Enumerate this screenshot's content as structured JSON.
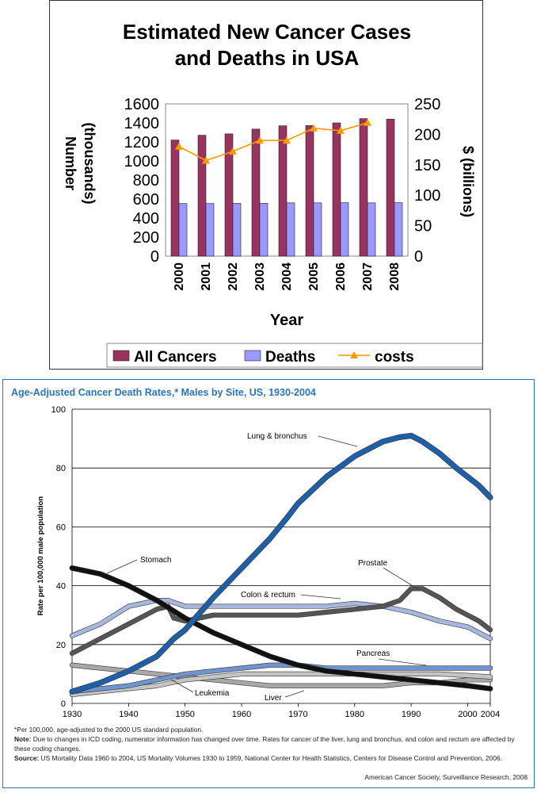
{
  "chart_data": [
    {
      "type": "bar",
      "title_lines": [
        "Estimated New Cancer Cases",
        "and Deaths in USA"
      ],
      "categories": [
        "2000",
        "2001",
        "2002",
        "2003",
        "2004",
        "2005",
        "2006",
        "2007",
        "2008"
      ],
      "series": [
        {
          "name": "All Cancers",
          "type": "bar",
          "axis": "left",
          "color": "#99335f",
          "values": [
            1220,
            1270,
            1285,
            1335,
            1370,
            1372,
            1400,
            1445,
            1440
          ]
        },
        {
          "name": "Deaths",
          "type": "bar",
          "axis": "left",
          "color": "#9999ff",
          "values": [
            553,
            553,
            555,
            556,
            560,
            560,
            562,
            560,
            562
          ]
        },
        {
          "name": "costs",
          "type": "line",
          "axis": "right",
          "color": "#ff9900",
          "values": [
            180,
            157,
            172,
            190,
            190,
            210,
            206,
            219,
            null
          ]
        }
      ],
      "ylabel_lines": [
        "Number",
        "(thousands)"
      ],
      "ylim": [
        0,
        1600
      ],
      "yticks": [
        "0",
        "200",
        "400",
        "600",
        "800",
        "1000",
        "1200",
        "1400",
        "1600"
      ],
      "y2label": "$ (billions)",
      "y2lim": [
        0,
        250
      ],
      "y2ticks": [
        "0",
        "50",
        "100",
        "150",
        "200",
        "250"
      ],
      "xlabel": "Year",
      "legend_position": "bottom"
    },
    {
      "type": "line",
      "title": "Age-Adjusted Cancer Death Rates,* Males by Site, US, 1930-2004",
      "ylabel": "Rate per 100,000 male population",
      "xlim": [
        1930,
        2004
      ],
      "ylim": [
        0,
        100
      ],
      "xticks": [
        "1930",
        "1940",
        "1950",
        "1960",
        "1970",
        "1980",
        "1990",
        "2000",
        "2004"
      ],
      "yticks": [
        "0",
        "20",
        "40",
        "60",
        "80",
        "100"
      ],
      "grid": true,
      "series": [
        {
          "name": "Lung & bronchus",
          "color": "#1f5fa8",
          "x": [
            1930,
            1935,
            1940,
            1945,
            1948,
            1950,
            1955,
            1960,
            1965,
            1968,
            1970,
            1975,
            1980,
            1985,
            1988,
            1990,
            1992,
            1995,
            1998,
            2000,
            2002,
            2004
          ],
          "y": [
            4,
            7,
            11,
            16,
            22,
            25,
            36,
            46,
            56,
            63,
            68,
            77,
            84,
            89,
            90.5,
            91,
            89,
            85,
            80,
            77,
            74,
            70
          ]
        },
        {
          "name": "Stomach",
          "color": "#111111",
          "x": [
            1930,
            1935,
            1940,
            1945,
            1950,
            1955,
            1960,
            1965,
            1970,
            1975,
            1980,
            1985,
            1990,
            1995,
            2000,
            2004
          ],
          "y": [
            46,
            44,
            40,
            35,
            29,
            24,
            20,
            16,
            13,
            11,
            10,
            9,
            8,
            7,
            6,
            5
          ]
        },
        {
          "name": "Prostate",
          "color": "#555555",
          "x": [
            1930,
            1935,
            1940,
            1944,
            1945,
            1947,
            1948,
            1950,
            1955,
            1960,
            1965,
            1970,
            1975,
            1980,
            1985,
            1988,
            1990,
            1992,
            1995,
            1998,
            2000,
            2002,
            2004
          ],
          "y": [
            17,
            22,
            27,
            31,
            32,
            33,
            29,
            28,
            30,
            30,
            30,
            30,
            31,
            32,
            33,
            35,
            39,
            39,
            36,
            32,
            30,
            28,
            25
          ]
        },
        {
          "name": "Colon & rectum",
          "color": "#a7b7de",
          "x": [
            1930,
            1935,
            1940,
            1945,
            1947,
            1950,
            1955,
            1960,
            1965,
            1970,
            1975,
            1980,
            1985,
            1990,
            1995,
            2000,
            2004
          ],
          "y": [
            23,
            27,
            33,
            35,
            35,
            33,
            33,
            33,
            33,
            33,
            33,
            34,
            33,
            31,
            28,
            26,
            22
          ]
        },
        {
          "name": "Pancreas",
          "color": "#6f94cf",
          "x": [
            1930,
            1935,
            1940,
            1945,
            1950,
            1955,
            1960,
            1965,
            1970,
            1975,
            1980,
            1985,
            1990,
            1995,
            2000,
            2004
          ],
          "y": [
            4,
            5,
            6,
            8,
            10,
            11,
            12,
            13,
            13,
            12,
            12,
            12,
            12,
            12,
            12,
            12
          ]
        },
        {
          "name": "Leukemia",
          "color": "#c4c4c4",
          "x": [
            1930,
            1935,
            1940,
            1945,
            1950,
            1955,
            1960,
            1965,
            1970,
            1975,
            1980,
            1985,
            1990,
            1995,
            2000,
            2004
          ],
          "y": [
            3,
            4,
            5,
            6,
            8,
            9,
            10,
            10,
            10,
            10,
            10,
            10,
            10,
            10,
            9.5,
            9
          ]
        },
        {
          "name": "Liver",
          "color": "#a8a8a8",
          "x": [
            1930,
            1935,
            1940,
            1945,
            1950,
            1955,
            1960,
            1965,
            1970,
            1975,
            1980,
            1985,
            1990,
            1995,
            2000,
            2004
          ],
          "y": [
            13,
            12,
            11,
            10,
            9,
            8,
            7,
            6,
            6,
            6,
            6,
            6,
            7,
            7,
            8,
            8
          ]
        }
      ],
      "annotations": {
        "lung": "Lung & bronchus",
        "stomach": "Stomach",
        "prostate": "Prostate",
        "colon": "Colon & rectum",
        "pancreas": "Pancreas",
        "leukemia": "Leukemia",
        "liver": "Liver"
      }
    }
  ],
  "footnotes": {
    "star": "*Per 100,000, age-adjusted to the 2000 US standard population.",
    "note_label": "Note:",
    "note_text": " Due to changes in ICD coding, numerator information has changed over time. Rates for cancer of the liver, lung and bronchus, and colon and rectum are affected by these coding changes.",
    "source_label": "Source:",
    "source_text": " US Mortality Data 1960 to 2004, US Mortality Volumes 1930 to 1959, National Center for Health Statistics, Centers for Disease Control and Prevention, 2006.",
    "credit": "American Cancer Society, Surveillance Research, 2008"
  }
}
